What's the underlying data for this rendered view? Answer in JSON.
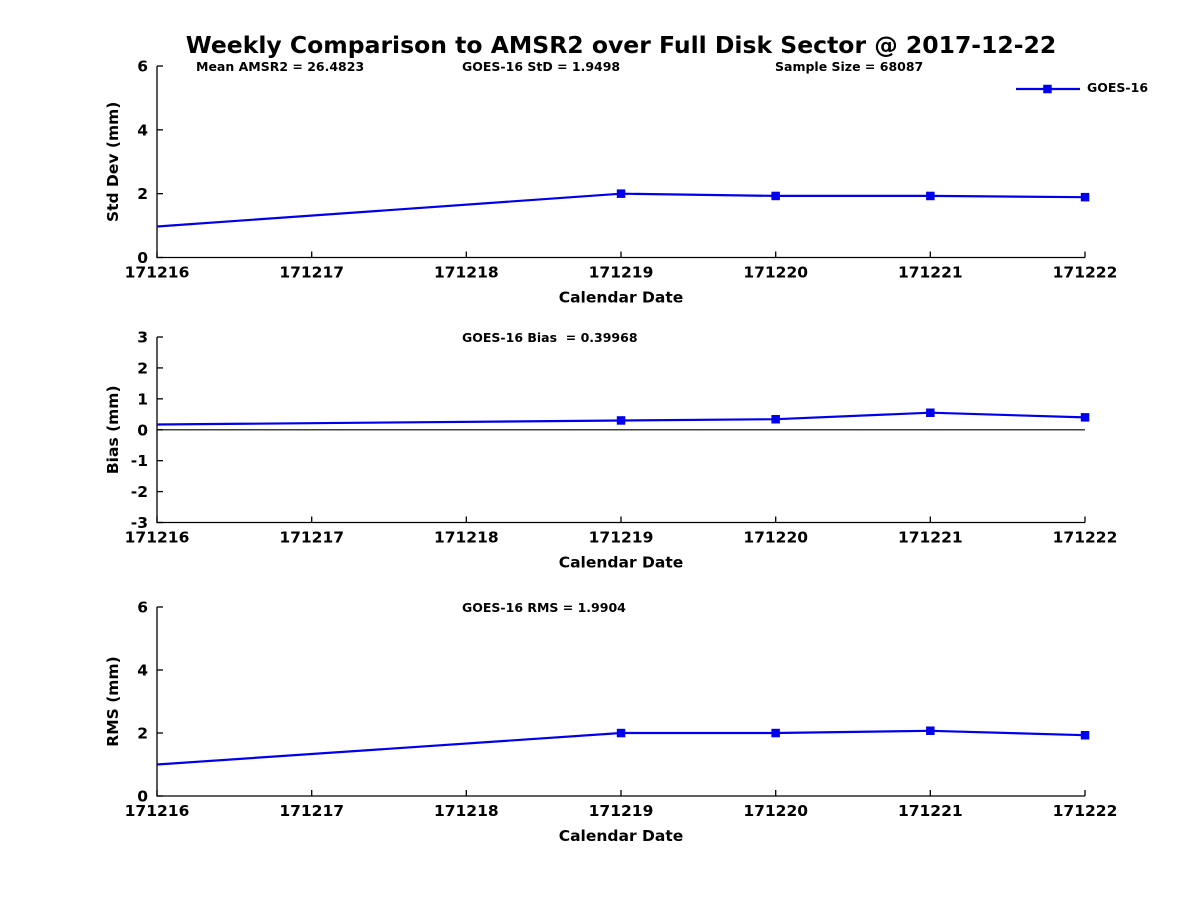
{
  "figure_title": "Weekly Comparison to AMSR2 over Full Disk Sector @ 2017-12-22",
  "legend": {
    "label": "GOES-16"
  },
  "colors": {
    "series": "#0000ee",
    "axis": "#000000",
    "background": "#ffffff"
  },
  "chart_data": [
    {
      "id": "std-dev",
      "type": "line",
      "ylabel": "Std Dev (mm)",
      "xlabel": "Calendar Date",
      "xlim": [
        171216,
        171222
      ],
      "ylim": [
        0,
        6
      ],
      "yticks": [
        0,
        2,
        4,
        6
      ],
      "xticks": [
        "171216",
        "171217",
        "171218",
        "171219",
        "171220",
        "171221",
        "171222"
      ],
      "annotations": [
        "Mean AMSR2 = 26.4823",
        "GOES-16 StD = 1.9498",
        "Sample Size = 68087"
      ],
      "zero_line": false,
      "legend_position": "top-right-outside",
      "grid": false,
      "series": [
        {
          "name": "GOES-16",
          "marker": "square",
          "x": [
            171216,
            171219,
            171220,
            171221,
            171222
          ],
          "y": [
            0.97,
            2.0,
            1.93,
            1.93,
            1.89
          ]
        }
      ]
    },
    {
      "id": "bias",
      "type": "line",
      "ylabel": "Bias (mm)",
      "xlabel": "Calendar Date",
      "xlim": [
        171216,
        171222
      ],
      "ylim": [
        -3,
        3
      ],
      "yticks": [
        3,
        2,
        1,
        0,
        -1,
        -2,
        -3
      ],
      "xticks": [
        "171216",
        "171217",
        "171218",
        "171219",
        "171220",
        "171221",
        "171222"
      ],
      "annotations": [
        "GOES-16 Bias  = 0.39968"
      ],
      "zero_line": true,
      "grid": false,
      "series": [
        {
          "name": "GOES-16",
          "marker": "square",
          "x": [
            171216,
            171219,
            171220,
            171221,
            171222
          ],
          "y": [
            0.17,
            0.3,
            0.34,
            0.55,
            0.4
          ]
        }
      ]
    },
    {
      "id": "rms",
      "type": "line",
      "ylabel": "RMS (mm)",
      "xlabel": "Calendar Date",
      "xlim": [
        171216,
        171222
      ],
      "ylim": [
        0,
        6
      ],
      "yticks": [
        0,
        2,
        4,
        6
      ],
      "xticks": [
        "171216",
        "171217",
        "171218",
        "171219",
        "171220",
        "171221",
        "171222"
      ],
      "annotations": [
        "GOES-16 RMS = 1.9904"
      ],
      "zero_line": false,
      "grid": false,
      "series": [
        {
          "name": "GOES-16",
          "marker": "square",
          "x": [
            171216,
            171219,
            171220,
            171221,
            171222
          ],
          "y": [
            1.0,
            2.0,
            2.0,
            2.07,
            1.93
          ]
        }
      ]
    }
  ]
}
